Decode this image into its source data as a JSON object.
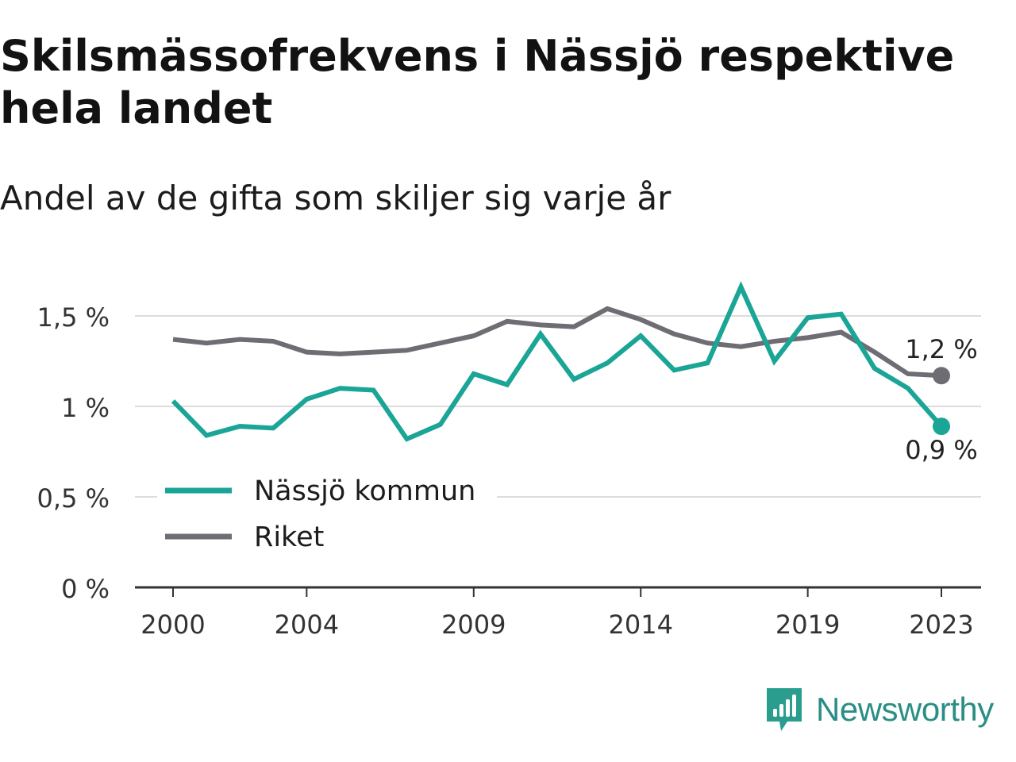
{
  "title": "Skilsmässofrekvens i Nässjö respektive hela landet",
  "subtitle": "Andel av de gifta som skiljer sig varje år",
  "brand": {
    "name": "Newsworthy",
    "icon": "newsworthy-logo-icon",
    "color": "#2a9d8f"
  },
  "chart_data": {
    "type": "line",
    "title": "Skilsmässofrekvens i Nässjö respektive hela landet",
    "subtitle": "Andel av de gifta som skiljer sig varje år",
    "xlabel": "",
    "ylabel": "",
    "x": [
      2000,
      2001,
      2002,
      2003,
      2004,
      2005,
      2006,
      2007,
      2008,
      2009,
      2010,
      2011,
      2012,
      2013,
      2014,
      2015,
      2016,
      2017,
      2018,
      2019,
      2020,
      2021,
      2022,
      2023
    ],
    "x_ticks": [
      2000,
      2004,
      2009,
      2014,
      2019,
      2023
    ],
    "x_tick_labels": [
      "2000",
      "2004",
      "2009",
      "2014",
      "2019",
      "2023"
    ],
    "y_ticks": [
      0,
      0.5,
      1,
      1.5
    ],
    "y_tick_labels": [
      "0 %",
      "0,5 %",
      "1 %",
      "1,5 %"
    ],
    "ylim": [
      0,
      1.5
    ],
    "grid": true,
    "legend": "bottom-left",
    "series": [
      {
        "name": "Nässjö kommun",
        "color": "#1aa596",
        "values": [
          1.03,
          0.84,
          0.89,
          0.88,
          1.04,
          1.1,
          1.09,
          0.82,
          0.9,
          1.18,
          1.12,
          1.4,
          1.15,
          1.24,
          1.39,
          1.2,
          1.24,
          1.66,
          1.25,
          1.49,
          1.51,
          1.21,
          1.1,
          0.89
        ],
        "end_label": "0,9 %"
      },
      {
        "name": "Riket",
        "color": "#6e6d74",
        "values": [
          1.37,
          1.35,
          1.37,
          1.36,
          1.3,
          1.29,
          1.3,
          1.31,
          1.35,
          1.39,
          1.47,
          1.45,
          1.44,
          1.54,
          1.48,
          1.4,
          1.35,
          1.33,
          1.36,
          1.38,
          1.41,
          1.3,
          1.18,
          1.17
        ],
        "end_label": "1,2 %"
      }
    ]
  }
}
